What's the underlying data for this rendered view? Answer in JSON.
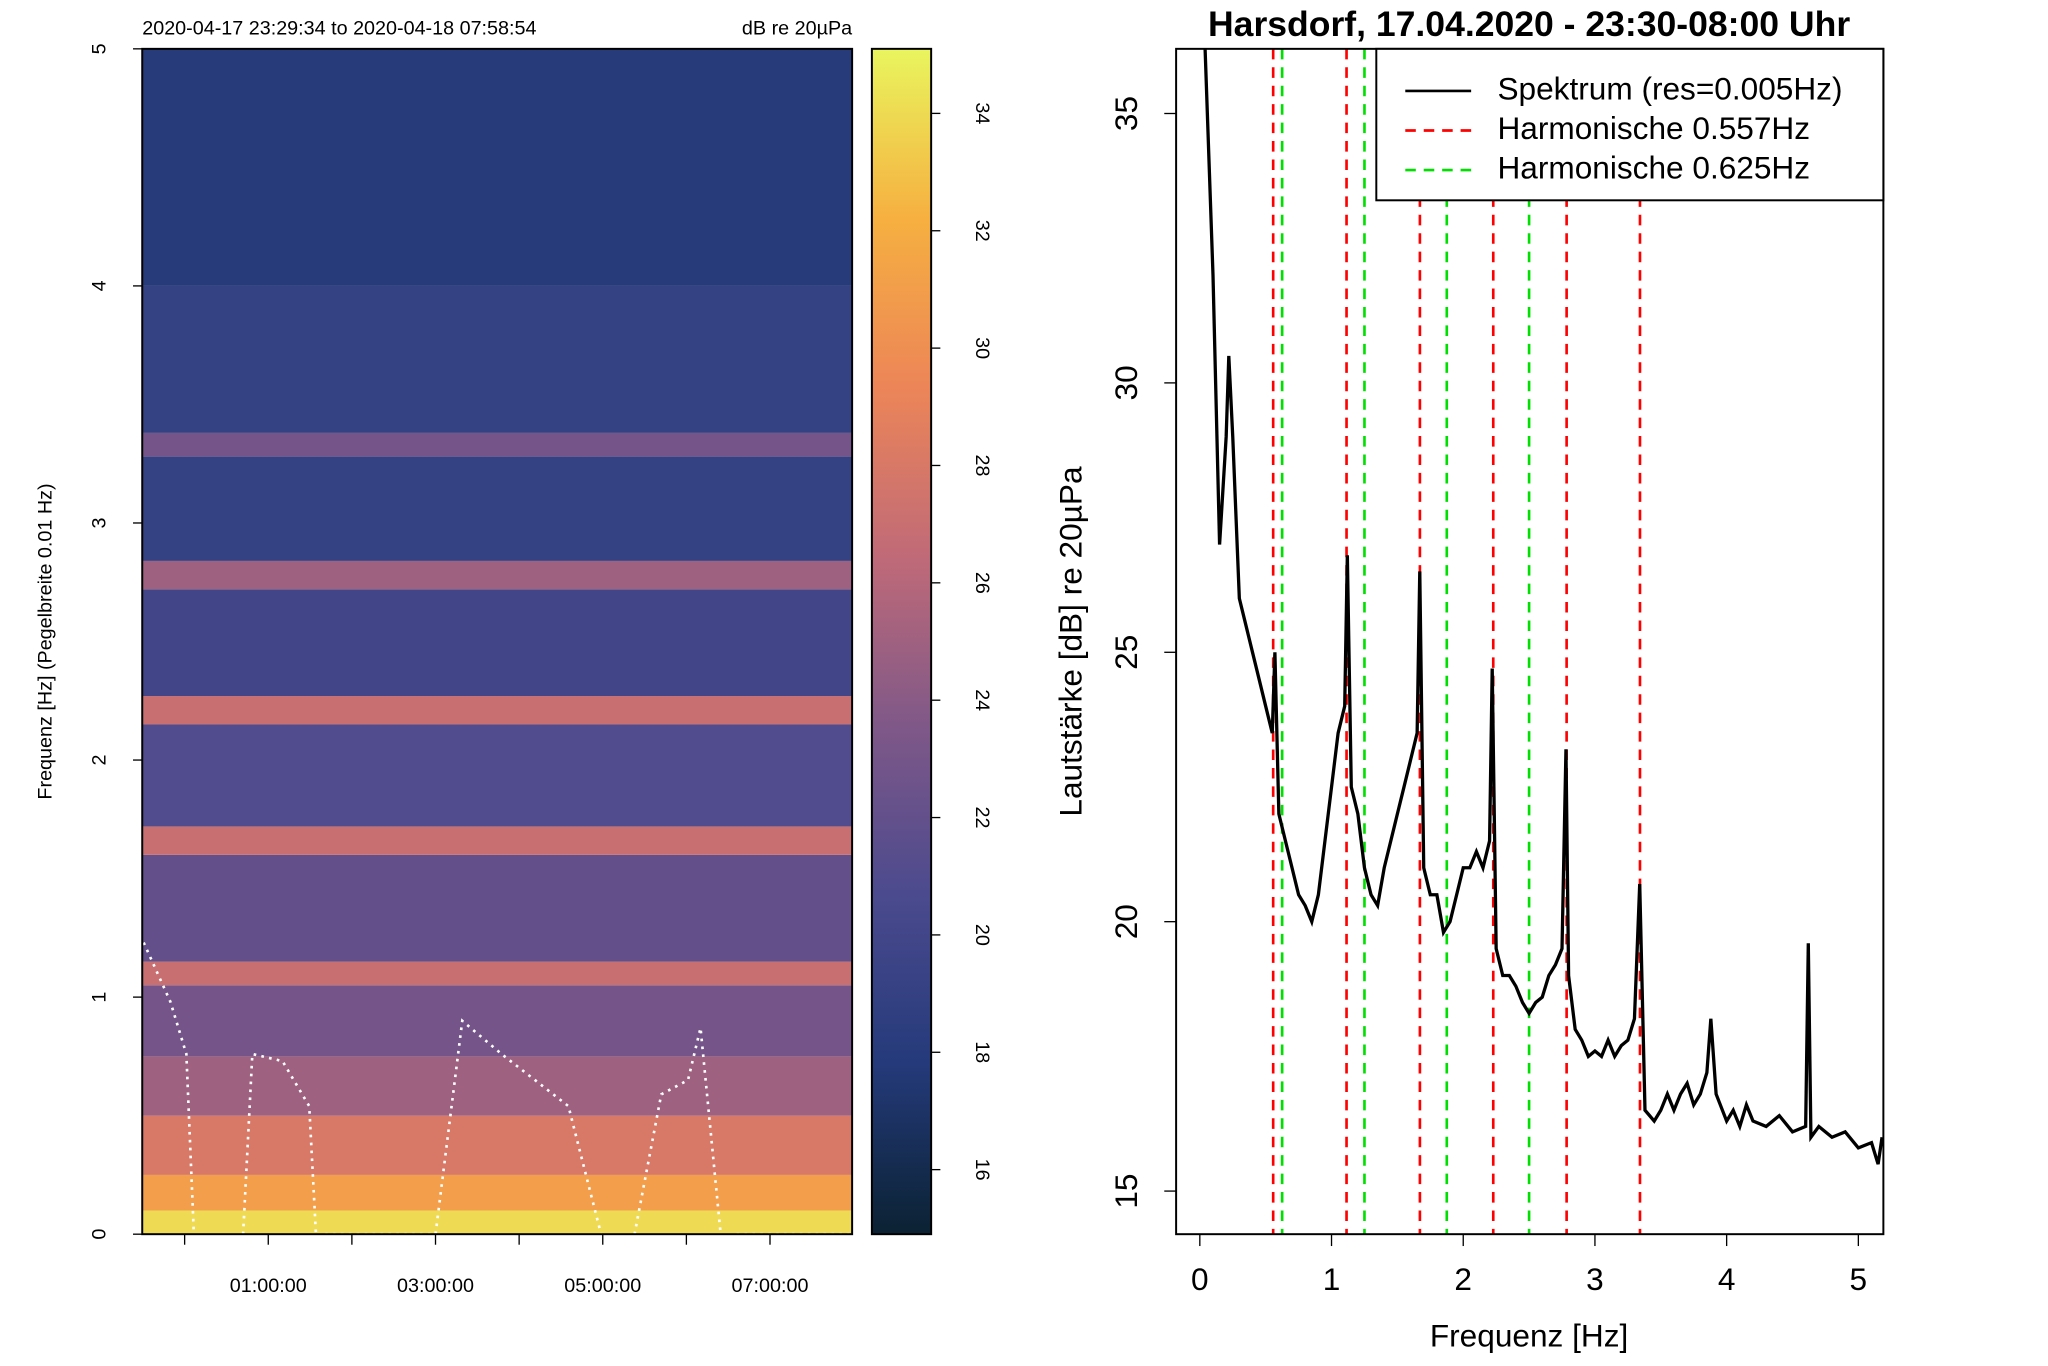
{
  "chart_data": [
    {
      "type": "heatmap",
      "title": "2020-04-17 23:29:34 to 2020-04-18 07:58:54",
      "colorbar_label": "dB re 20µPa",
      "ylabel": "Frequenz [Hz] (Pegelbreite 0.01 Hz)",
      "xlim": [
        -0.507,
        7.982
      ],
      "xticks": [
        {
          "value": 1,
          "label": "01:00:00"
        },
        {
          "value": 3,
          "label": "03:00:00"
        },
        {
          "value": 5,
          "label": "05:00:00"
        },
        {
          "value": 7,
          "label": "07:00:00"
        }
      ],
      "xminor_ticks": [
        0,
        2,
        4,
        6
      ],
      "ylim": [
        0,
        5
      ],
      "yticks": [
        0,
        1,
        2,
        3,
        4,
        5
      ],
      "y_bins": [
        0,
        0.1,
        0.25,
        0.5,
        0.75,
        1.05,
        1.15,
        1.6,
        1.72,
        2.15,
        2.27,
        2.72,
        2.84,
        3.28,
        3.38,
        4,
        5
      ],
      "values": [
        34,
        31,
        28,
        25,
        23,
        27,
        22,
        27,
        21,
        27,
        20,
        25,
        19,
        23,
        19,
        18
      ],
      "zlim": [
        14.9,
        35.1
      ],
      "zticks": [
        16,
        18,
        20,
        22,
        24,
        26,
        28,
        30,
        32,
        34
      ],
      "colormap": [
        "#0b2233",
        "#243a7a",
        "#4b4a8e",
        "#7f5888",
        "#c06a78",
        "#ec8558",
        "#f6b040",
        "#e9f55e"
      ],
      "overlay": {
        "color": "#ffffff",
        "x": [
          -0.49,
          -0.17,
          0.02,
          0.11,
          null,
          0.7,
          0.81,
          1.17,
          1.49,
          1.57,
          null,
          1.68,
          3.0,
          3.32,
          3.79,
          4.59,
          4.98,
          null,
          5.38,
          5.7,
          6.02,
          6.17,
          6.41,
          null,
          6.6,
          7.95
        ],
        "y": [
          1.23,
          0.98,
          0.76,
          0,
          null,
          0,
          0.76,
          0.73,
          0.54,
          0,
          null,
          0,
          0,
          0.9,
          0.76,
          0.54,
          0,
          null,
          0,
          0.59,
          0.65,
          0.87,
          0,
          null,
          0,
          0
        ]
      }
    },
    {
      "type": "line",
      "title": "Harsdorf, 17.04.2020 - 23:30-08:00 Uhr",
      "xlabel": "Frequenz [Hz]",
      "ylabel": "Lautstärke [dB] re 20µPa",
      "xlim": [
        -0.18,
        5.19
      ],
      "xticks": [
        0,
        1,
        2,
        3,
        4,
        5
      ],
      "ylim": [
        14.2,
        36.2
      ],
      "yticks": [
        15,
        20,
        25,
        30,
        35
      ],
      "legend": "top-right",
      "series": [
        {
          "name": "Spektrum (res=0.005Hz)",
          "color": "#000000",
          "x": [
            0.04,
            0.1,
            0.15,
            0.2,
            0.22,
            0.25,
            0.3,
            0.35,
            0.4,
            0.45,
            0.5,
            0.55,
            0.57,
            0.6,
            0.65,
            0.7,
            0.75,
            0.8,
            0.85,
            0.9,
            0.95,
            1.0,
            1.05,
            1.1,
            1.12,
            1.15,
            1.2,
            1.25,
            1.3,
            1.35,
            1.4,
            1.45,
            1.5,
            1.55,
            1.6,
            1.65,
            1.67,
            1.7,
            1.75,
            1.8,
            1.85,
            1.9,
            1.95,
            2.0,
            2.05,
            2.1,
            2.15,
            2.2,
            2.22,
            2.25,
            2.3,
            2.35,
            2.4,
            2.45,
            2.5,
            2.55,
            2.6,
            2.65,
            2.7,
            2.75,
            2.78,
            2.8,
            2.85,
            2.9,
            2.95,
            3.0,
            3.05,
            3.1,
            3.15,
            3.2,
            3.25,
            3.3,
            3.34,
            3.38,
            3.45,
            3.5,
            3.55,
            3.6,
            3.65,
            3.7,
            3.75,
            3.8,
            3.85,
            3.88,
            3.92,
            4.0,
            4.05,
            4.1,
            4.15,
            4.2,
            4.3,
            4.4,
            4.5,
            4.6,
            4.62,
            4.64,
            4.7,
            4.8,
            4.9,
            5.0,
            5.1,
            5.15,
            5.18
          ],
          "values": [
            36.2,
            32,
            27,
            29,
            30.5,
            29,
            26,
            25.5,
            25,
            24.5,
            24,
            23.5,
            25,
            22,
            21.5,
            21,
            20.5,
            20.3,
            20,
            20.5,
            21.5,
            22.5,
            23.5,
            24,
            26.8,
            22.5,
            22,
            21,
            20.5,
            20.3,
            21,
            21.5,
            22,
            22.5,
            23,
            23.5,
            26.5,
            21,
            20.5,
            20.5,
            19.8,
            20,
            20.5,
            21,
            21,
            21.3,
            21,
            21.5,
            24.7,
            19.5,
            19,
            19,
            18.8,
            18.5,
            18.3,
            18.5,
            18.6,
            19,
            19.2,
            19.5,
            23.2,
            19,
            18,
            17.8,
            17.5,
            17.6,
            17.5,
            17.8,
            17.5,
            17.7,
            17.8,
            18.2,
            20.7,
            16.5,
            16.3,
            16.5,
            16.8,
            16.5,
            16.8,
            17,
            16.6,
            16.8,
            17.2,
            18.2,
            16.8,
            16.3,
            16.5,
            16.2,
            16.6,
            16.3,
            16.2,
            16.4,
            16.1,
            16.2,
            19.6,
            16,
            16.2,
            16,
            16.1,
            15.8,
            15.9,
            15.5,
            16
          ]
        }
      ],
      "vlines": [
        {
          "name": "Harmonische 0.557Hz",
          "color": "#ff0000",
          "x": [
            0.557,
            1.114,
            1.671,
            2.228,
            2.785,
            3.342
          ]
        },
        {
          "name": "Harmonische 0.625Hz",
          "color": "#00e000",
          "x": [
            0.625,
            1.25,
            1.875,
            2.5
          ]
        }
      ]
    }
  ]
}
